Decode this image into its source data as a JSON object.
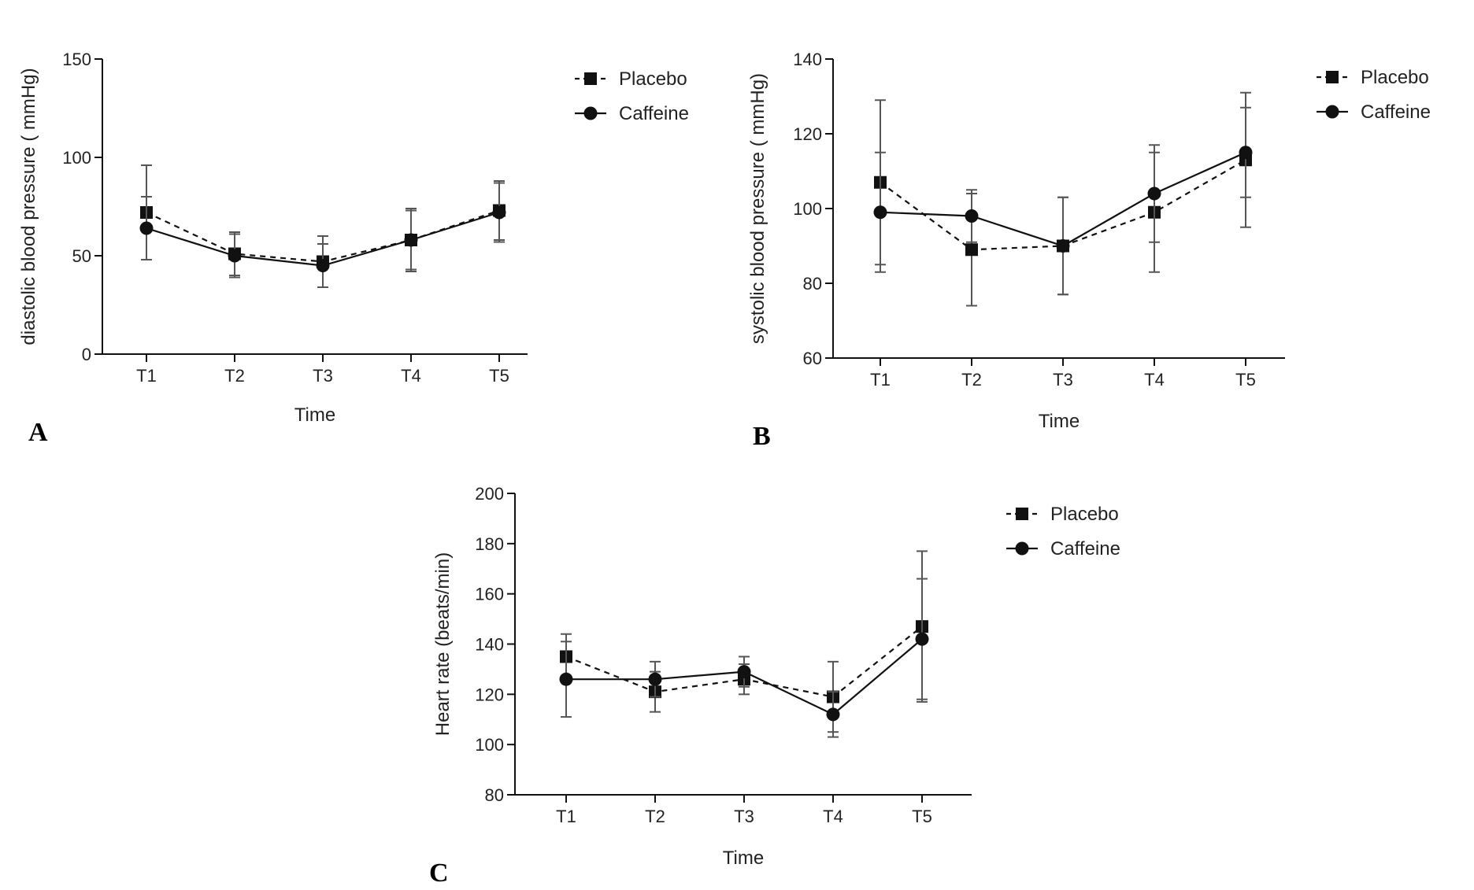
{
  "colors": {
    "line": "#111111",
    "error_bar": "#555555",
    "background": "#ffffff"
  },
  "chart_data": [
    {
      "panel": "A",
      "type": "line",
      "categories": [
        "T1",
        "T2",
        "T3",
        "T4",
        "T5"
      ],
      "xlabel": "Time",
      "ylabel": "diastolic blood pressure ( mmHg)",
      "ylim": [
        0,
        150
      ],
      "yticks": [
        0,
        50,
        100,
        150
      ],
      "grid": false,
      "legend": "top-right",
      "series": [
        {
          "name": "Placebo",
          "marker": "square",
          "line": "dashed",
          "values": [
            72,
            51,
            47,
            58,
            73
          ],
          "errors": [
            24,
            11,
            13,
            16,
            15
          ]
        },
        {
          "name": "Caffeine",
          "marker": "circle",
          "line": "solid",
          "values": [
            64,
            50,
            45,
            58,
            72
          ],
          "errors": [
            16,
            11,
            11,
            15,
            15
          ]
        }
      ]
    },
    {
      "panel": "B",
      "type": "line",
      "categories": [
        "T1",
        "T2",
        "T3",
        "T4",
        "T5"
      ],
      "xlabel": "Time",
      "ylabel": "systolic blood pressure ( mmHg)",
      "ylim": [
        60,
        140
      ],
      "yticks": [
        60,
        80,
        100,
        120,
        140
      ],
      "grid": false,
      "legend": "top-right",
      "series": [
        {
          "name": "Placebo",
          "marker": "square",
          "line": "dashed",
          "values": [
            107,
            89,
            90,
            99,
            113
          ],
          "errors": [
            22,
            15,
            13,
            16,
            18
          ]
        },
        {
          "name": "Caffeine",
          "marker": "circle",
          "line": "solid",
          "values": [
            99,
            98,
            90,
            104,
            115
          ],
          "errors": [
            16,
            7,
            13,
            13,
            12
          ]
        }
      ]
    },
    {
      "panel": "C",
      "type": "line",
      "categories": [
        "T1",
        "T2",
        "T3",
        "T4",
        "T5"
      ],
      "xlabel": "Time",
      "ylabel": "Heart rate (beats/min)",
      "ylim": [
        80,
        200
      ],
      "yticks": [
        80,
        100,
        120,
        140,
        160,
        180,
        200
      ],
      "grid": false,
      "legend": "top-right",
      "series": [
        {
          "name": "Placebo",
          "marker": "square",
          "line": "dashed",
          "values": [
            135,
            121,
            126,
            119,
            147
          ],
          "errors": [
            9,
            8,
            6,
            14,
            30
          ]
        },
        {
          "name": "Caffeine",
          "marker": "circle",
          "line": "solid",
          "values": [
            126,
            126,
            129,
            112,
            142
          ],
          "errors": [
            15,
            7,
            6,
            9,
            24
          ]
        }
      ]
    }
  ]
}
